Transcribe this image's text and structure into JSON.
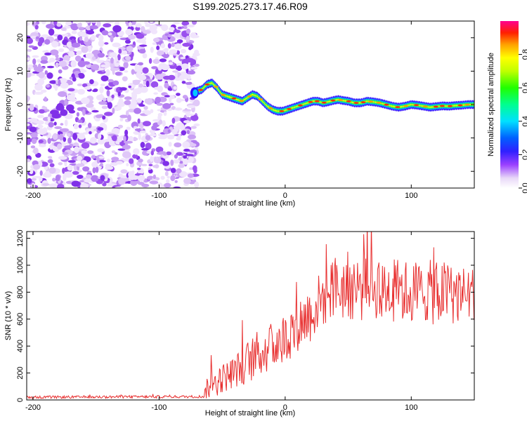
{
  "title": "S199.2025.273.17.46.R09",
  "chart_data": [
    {
      "type": "heatmap",
      "name": "spectrogram",
      "xlabel": "Height of straight line (km)",
      "ylabel": "Frequency (Hz)",
      "xlim": [
        -205,
        150
      ],
      "ylim": [
        -25,
        25
      ],
      "xticks": [
        -200,
        -100,
        0,
        100
      ],
      "yticks": [
        -20,
        -10,
        0,
        10,
        20
      ],
      "noise_region_x": [
        -205,
        -70
      ],
      "signal_x_start": -73,
      "signal_curve": {
        "x": [
          -73,
          -70,
          -66,
          -62,
          -58,
          -54,
          -50,
          -46,
          -42,
          -38,
          -34,
          -30,
          -26,
          -22,
          -18,
          -14,
          -10,
          -6,
          -2,
          2,
          6,
          10,
          14,
          18,
          22,
          26,
          30,
          34,
          38,
          42,
          46,
          50,
          55,
          60,
          65,
          70,
          75,
          80,
          85,
          90,
          95,
          100,
          105,
          110,
          115,
          120,
          125,
          130,
          135,
          140,
          145,
          150
        ],
        "y": [
          3.5,
          4,
          4.5,
          6,
          6.5,
          5,
          3,
          2.5,
          2,
          1.5,
          1,
          2,
          3,
          2.5,
          1,
          -0.5,
          -1.5,
          -2,
          -2,
          -1.5,
          -1,
          -0.5,
          0,
          0.5,
          1,
          1,
          0.5,
          0.8,
          1.2,
          1.5,
          1.2,
          1,
          0.5,
          0.5,
          1,
          0.8,
          0.5,
          0,
          -0.5,
          -0.8,
          -0.5,
          0,
          -0.2,
          -0.5,
          -0.8,
          -0.6,
          -0.4,
          -0.5,
          -0.3,
          -0.2,
          0,
          0
        ]
      },
      "colorbar": {
        "label": "Normalized spectral amplitude",
        "range": [
          0,
          1
        ],
        "ticks": [
          "0.0",
          "0.2",
          "0.4",
          "0.6",
          "0.8"
        ],
        "tick_values": [
          0.0,
          0.2,
          0.4,
          0.6,
          0.8
        ]
      }
    },
    {
      "type": "line",
      "name": "snr",
      "xlabel": "Height of straight line (km)",
      "ylabel": "SNR (10 * v/v)",
      "xlim": [
        -205,
        150
      ],
      "ylim": [
        0,
        1250
      ],
      "xticks": [
        -200,
        -100,
        0,
        100
      ],
      "yticks": [
        0,
        200,
        400,
        600,
        800,
        1000,
        1200
      ],
      "color": "#e83030",
      "envelope": {
        "x": [
          -205,
          -65,
          -60,
          -50,
          -40,
          -30,
          -20,
          -10,
          0,
          10,
          20,
          30,
          40,
          50,
          60,
          70,
          80,
          90,
          100,
          110,
          120,
          130,
          140,
          150
        ],
        "mean": [
          20,
          25,
          120,
          160,
          210,
          280,
          350,
          400,
          460,
          560,
          640,
          760,
          820,
          850,
          830,
          840,
          820,
          810,
          800,
          810,
          790,
          800,
          780,
          790
        ],
        "spread": [
          10,
          10,
          120,
          110,
          120,
          160,
          180,
          180,
          200,
          200,
          220,
          220,
          240,
          260,
          260,
          240,
          240,
          240,
          240,
          240,
          240,
          240,
          220,
          200
        ]
      }
    }
  ]
}
